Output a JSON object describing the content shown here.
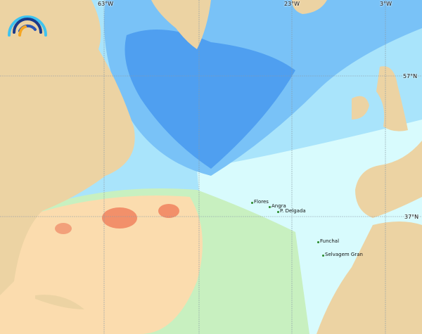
{
  "map": {
    "longitude_labels": [
      "63°W",
      "23°W",
      "3°W"
    ],
    "latitude_labels": [
      "57°N",
      "37°N"
    ],
    "places": [
      "Flores",
      "Angra",
      "P. Delgada",
      "Funchal",
      "Selvagem Gran"
    ],
    "colors": {
      "land": "#ecd3a3",
      "ocean_deep_cold": "#4f9ff0",
      "ocean_cold": "#79c2f7",
      "ocean_cool": "#a9e4fb",
      "ocean_mild": "#d8fbfd",
      "ocean_warm": "#c8f0c0",
      "ocean_warmer": "#fbdcae",
      "ocean_hot": "#f2906a"
    },
    "logo_icon": "wave-arcs-logo"
  }
}
